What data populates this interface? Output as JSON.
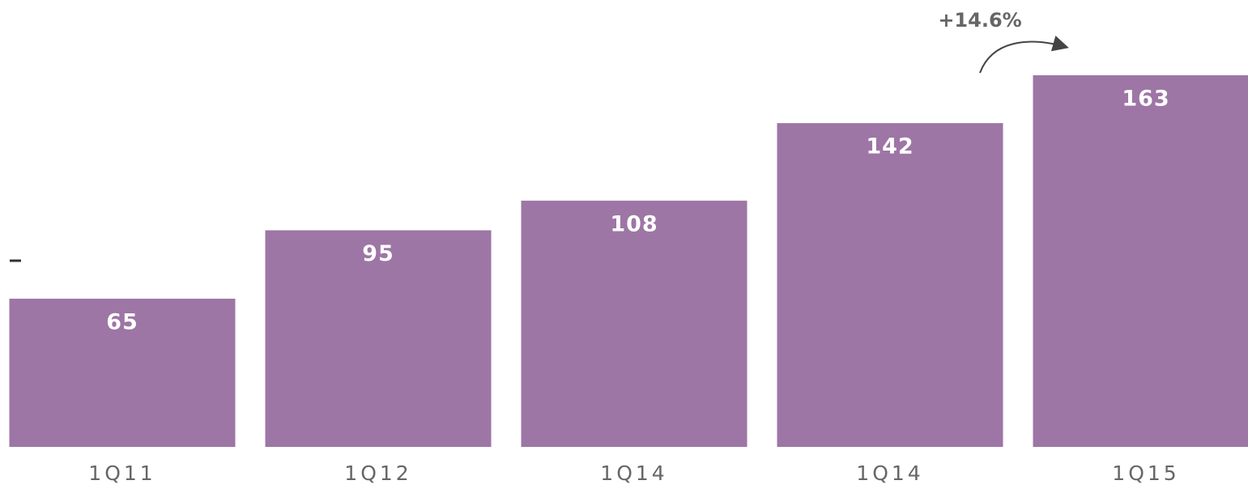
{
  "chart_data": {
    "type": "bar",
    "categories": [
      "1Q11",
      "1Q12",
      "1Q14",
      "1Q14",
      "1Q15"
    ],
    "values": [
      65,
      95,
      108,
      142,
      163
    ],
    "color": "#9d76a5",
    "ylim": [
      0,
      196
    ],
    "annotation": "+14.6%"
  }
}
